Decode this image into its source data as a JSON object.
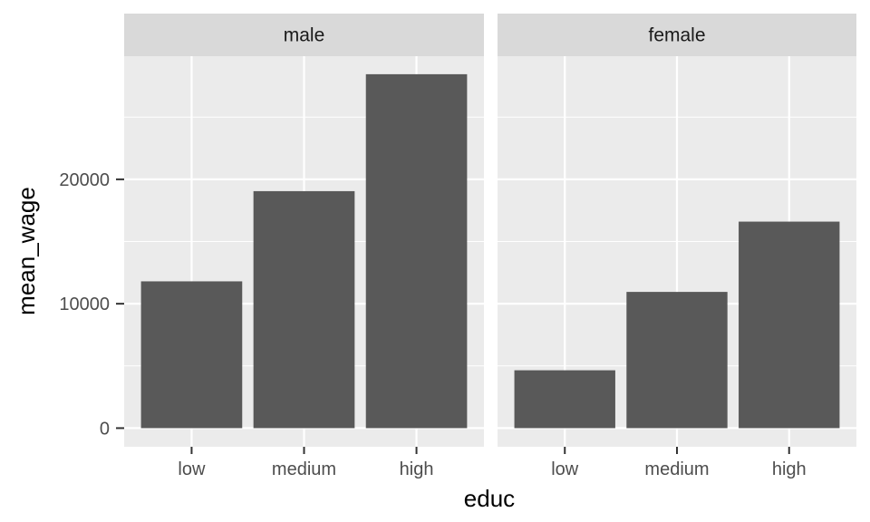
{
  "chart_data": {
    "type": "bar",
    "facets": [
      {
        "label": "male",
        "categories": [
          "low",
          "medium",
          "high"
        ],
        "values": [
          11800,
          19050,
          28450
        ]
      },
      {
        "label": "female",
        "categories": [
          "low",
          "medium",
          "high"
        ],
        "values": [
          4650,
          10950,
          16600
        ]
      }
    ],
    "xlabel": "educ",
    "ylabel": "mean_wage",
    "y_ticks": [
      0,
      10000,
      20000
    ],
    "y_tick_labels": [
      "0",
      "10000",
      "20000"
    ],
    "ylim": [
      -1500,
      29900
    ],
    "grid": true,
    "colors": {
      "bar": "#595959",
      "panel_background": "#ebebeb",
      "strip_background": "#d9d9d9",
      "grid": "#ffffff"
    }
  }
}
